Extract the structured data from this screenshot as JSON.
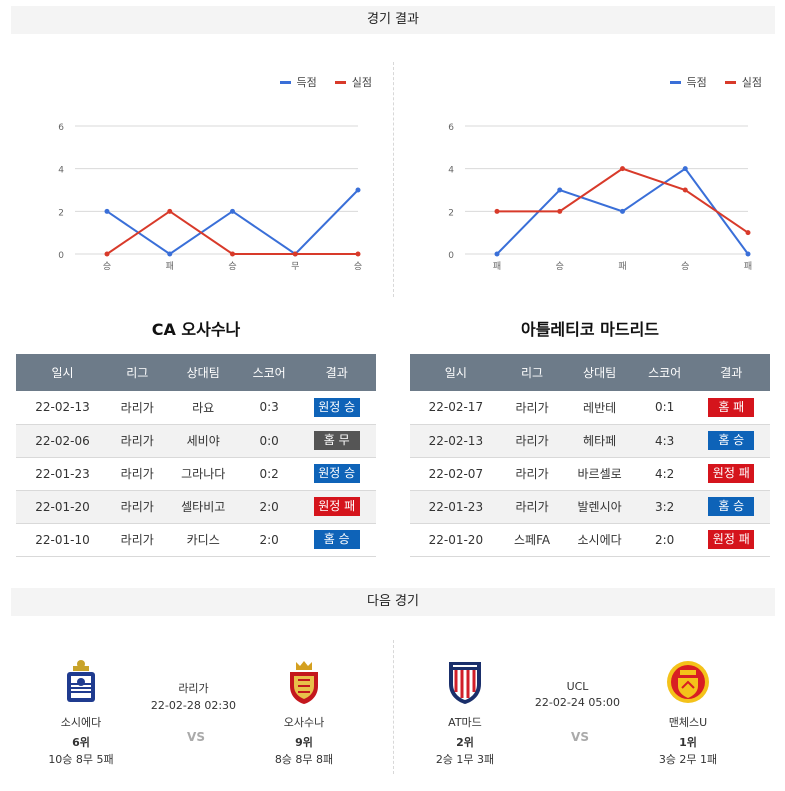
{
  "sections": {
    "results_title": "경기 결과",
    "next_title": "다음 경기"
  },
  "legend": {
    "scored": "득점",
    "conceded": "실점",
    "scored_color": "#3a6fd8",
    "conceded_color": "#d83a2a"
  },
  "chart_data": [
    {
      "type": "line",
      "categories": [
        "승",
        "패",
        "승",
        "무",
        "승"
      ],
      "y_ticks": [
        "0",
        "2",
        "4",
        "6"
      ],
      "ylim": [
        0,
        6
      ],
      "grid": true,
      "legend_position": "top-right",
      "series": [
        {
          "name": "득점",
          "values": [
            2,
            0,
            2,
            0,
            3
          ]
        },
        {
          "name": "실점",
          "values": [
            0,
            2,
            0,
            0,
            0
          ]
        }
      ]
    },
    {
      "type": "line",
      "categories": [
        "패",
        "승",
        "패",
        "승",
        "패"
      ],
      "y_ticks": [
        "0",
        "2",
        "4",
        "6"
      ],
      "ylim": [
        0,
        6
      ],
      "grid": true,
      "legend_position": "top-right",
      "series": [
        {
          "name": "득점",
          "values": [
            0,
            3,
            2,
            4,
            0
          ]
        },
        {
          "name": "실점",
          "values": [
            2,
            2,
            4,
            3,
            1
          ]
        }
      ]
    }
  ],
  "teams": {
    "left_title": "CA 오사수나",
    "right_title": "아틀레티코 마드리드"
  },
  "table_headers": [
    "일시",
    "리그",
    "상대팀",
    "스코어",
    "결과"
  ],
  "left_results": [
    {
      "date": "22-02-13",
      "league": "라리가",
      "opponent": "라요",
      "score": "0:3",
      "result": "원정 승",
      "kind": "win"
    },
    {
      "date": "22-02-06",
      "league": "라리가",
      "opponent": "세비야",
      "score": "0:0",
      "result": "홈 무",
      "kind": "draw"
    },
    {
      "date": "22-01-23",
      "league": "라리가",
      "opponent": "그라나다",
      "score": "0:2",
      "result": "원정 승",
      "kind": "win"
    },
    {
      "date": "22-01-20",
      "league": "라리가",
      "opponent": "셀타비고",
      "score": "2:0",
      "result": "원정 패",
      "kind": "lose"
    },
    {
      "date": "22-01-10",
      "league": "라리가",
      "opponent": "카디스",
      "score": "2:0",
      "result": "홈 승",
      "kind": "win"
    }
  ],
  "right_results": [
    {
      "date": "22-02-17",
      "league": "라리가",
      "opponent": "레반테",
      "score": "0:1",
      "result": "홈 패",
      "kind": "lose"
    },
    {
      "date": "22-02-13",
      "league": "라리가",
      "opponent": "헤타페",
      "score": "4:3",
      "result": "홈 승",
      "kind": "win"
    },
    {
      "date": "22-02-07",
      "league": "라리가",
      "opponent": "바르셀로",
      "score": "4:2",
      "result": "원정 패",
      "kind": "lose"
    },
    {
      "date": "22-01-23",
      "league": "라리가",
      "opponent": "발렌시아",
      "score": "3:2",
      "result": "홈 승",
      "kind": "win"
    },
    {
      "date": "22-01-20",
      "league": "스페FA",
      "opponent": "소시에다",
      "score": "2:0",
      "result": "원정 패",
      "kind": "lose"
    }
  ],
  "next_matches": [
    {
      "league": "라리가",
      "datetime": "22-02-28 02:30",
      "vs": "VS",
      "home": {
        "name": "소시에다",
        "rank": "6위",
        "record": "10승 8무 5패",
        "logo": "real-sociedad-crest-icon"
      },
      "away": {
        "name": "오사수나",
        "rank": "9위",
        "record": "8승 8무 8패",
        "logo": "osasuna-crest-icon"
      }
    },
    {
      "league": "UCL",
      "datetime": "22-02-24 05:00",
      "vs": "VS",
      "home": {
        "name": "AT마드",
        "rank": "2위",
        "record": "2승 1무 3패",
        "logo": "atletico-crest-icon"
      },
      "away": {
        "name": "맨체스U",
        "rank": "1위",
        "record": "3승 2무 1패",
        "logo": "man-utd-crest-icon"
      }
    }
  ]
}
